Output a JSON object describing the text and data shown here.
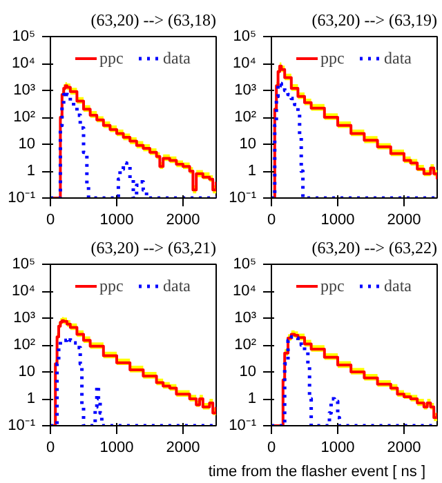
{
  "chart_data": [
    {
      "type": "step",
      "title": "(63,20) --> (63,18)",
      "log": "y",
      "xlim": [
        0,
        2500
      ],
      "ylim": [
        0.1,
        100000
      ],
      "xticks": [
        0,
        1000,
        2000
      ],
      "yticks": [
        {
          "value": 0.1,
          "label": "10⁻¹"
        },
        1,
        10,
        {
          "value": 100,
          "label": "10²"
        },
        {
          "value": 1000,
          "label": "10³"
        },
        {
          "value": 10000,
          "label": "10⁴"
        },
        {
          "value": 100000,
          "label": "10⁵"
        }
      ],
      "legend": "top",
      "series": [
        {
          "name": "ppc",
          "color": "#ff0000",
          "line_style": "solid",
          "x": [
            0,
            125,
            150,
            175,
            200,
            225,
            250,
            300,
            400,
            500,
            600,
            700,
            800,
            900,
            1000,
            1100,
            1200,
            1300,
            1400,
            1500,
            1600,
            1650,
            1700,
            1800,
            1900,
            2000,
            2100,
            2150,
            2200,
            2250,
            2300,
            2400,
            2450,
            2500
          ],
          "values": [
            0.1,
            0.1,
            100,
            700,
            1200,
            1500,
            1300,
            900,
            400,
            200,
            120,
            80,
            50,
            35,
            25,
            18,
            13,
            9,
            7,
            5,
            3.5,
            1.5,
            3,
            2.5,
            1.8,
            1.5,
            1,
            0.2,
            0.8,
            0.8,
            0.6,
            0.5,
            0.2,
            0.4
          ],
          "lower": [
            0.1,
            0.1,
            80,
            550,
            950,
            1200,
            1050,
            700,
            320,
            160,
            95,
            65,
            40,
            28,
            20,
            14,
            10,
            7,
            5.5,
            4,
            2.8,
            1.2,
            2.4,
            2,
            1.4,
            1.2,
            0.8,
            0.15,
            0.6,
            0.6,
            0.5,
            0.4,
            0.15,
            0.3
          ],
          "upper": [
            0.1,
            0.1,
            140,
            950,
            1700,
            2000,
            1800,
            1250,
            560,
            280,
            170,
            110,
            70,
            50,
            35,
            25,
            18,
            13,
            10,
            7,
            5,
            2.2,
            4.2,
            3.5,
            2.5,
            2.1,
            1.4,
            0.3,
            1.1,
            1.1,
            0.9,
            0.7,
            0.3,
            0.6
          ]
        },
        {
          "name": "data",
          "color": "#0000ff",
          "line_style": "dotted",
          "x": [
            0,
            125,
            150,
            175,
            200,
            225,
            250,
            300,
            350,
            400,
            450,
            500,
            550,
            575,
            1000,
            1025,
            1050,
            1100,
            1150,
            1200,
            1250,
            1300,
            1350,
            1400,
            1450,
            2500
          ],
          "values": [
            0.1,
            0.1,
            50,
            300,
            700,
            900,
            700,
            400,
            250,
            120,
            40,
            5,
            0.3,
            0.1,
            0.1,
            0.5,
            1.2,
            2,
            1.5,
            0.5,
            0.1,
            0.3,
            0.4,
            0.2,
            0.1,
            0.1
          ]
        }
      ]
    },
    {
      "type": "step",
      "title": "(63,20) --> (63,19)",
      "log": "y",
      "xlim": [
        0,
        2500
      ],
      "ylim": [
        0.1,
        100000
      ],
      "xticks": [
        0,
        1000,
        2000
      ],
      "yticks": [
        {
          "value": 0.1,
          "label": "10⁻¹"
        },
        1,
        10,
        {
          "value": 100,
          "label": "10²"
        },
        {
          "value": 1000,
          "label": "10³"
        },
        {
          "value": 10000,
          "label": "10⁴"
        },
        {
          "value": 100000,
          "label": "10⁵"
        }
      ],
      "legend": "top",
      "series": [
        {
          "name": "ppc",
          "color": "#ff0000",
          "line_style": "solid",
          "x": [
            0,
            25,
            50,
            75,
            100,
            125,
            150,
            200,
            300,
            400,
            500,
            600,
            800,
            1000,
            1200,
            1400,
            1600,
            1800,
            2000,
            2100,
            2200,
            2300,
            2350,
            2400,
            2450,
            2500
          ],
          "values": [
            0.1,
            0.1,
            200,
            1500,
            5000,
            8000,
            6000,
            3000,
            1200,
            600,
            350,
            220,
            100,
            50,
            25,
            14,
            8,
            4.5,
            2.5,
            2,
            1.2,
            0.8,
            0.8,
            1.3,
            0.8,
            0.5
          ],
          "lower": [
            0.1,
            0.1,
            160,
            1200,
            4000,
            6500,
            4800,
            2400,
            950,
            480,
            280,
            175,
            80,
            40,
            20,
            11,
            6.4,
            3.6,
            2,
            1.6,
            1,
            0.65,
            0.65,
            1,
            0.65,
            0.4
          ],
          "upper": [
            0.1,
            0.1,
            280,
            2100,
            7000,
            11000,
            8400,
            4200,
            1700,
            840,
            490,
            310,
            140,
            70,
            35,
            20,
            11,
            6.3,
            3.5,
            2.8,
            1.7,
            1.1,
            1.1,
            1.8,
            1.1,
            0.7
          ]
        },
        {
          "name": "data",
          "color": "#0000ff",
          "line_style": "dotted",
          "x": [
            0,
            25,
            50,
            75,
            100,
            125,
            150,
            200,
            250,
            300,
            350,
            400,
            425,
            450,
            475,
            2500
          ],
          "values": [
            0.1,
            0.1,
            50,
            600,
            1500,
            1800,
            1500,
            1000,
            700,
            500,
            300,
            150,
            20,
            1,
            0.1,
            0.1
          ]
        }
      ]
    },
    {
      "type": "step",
      "title": "(63,20) --> (63,21)",
      "log": "y",
      "xlim": [
        0,
        2500
      ],
      "ylim": [
        0.1,
        100000
      ],
      "xticks": [
        0,
        1000,
        2000
      ],
      "yticks": [
        {
          "value": 0.1,
          "label": "10⁻¹"
        },
        1,
        10,
        {
          "value": 100,
          "label": "10²"
        },
        {
          "value": 1000,
          "label": "10³"
        },
        {
          "value": 10000,
          "label": "10⁴"
        },
        {
          "value": 100000,
          "label": "10⁵"
        }
      ],
      "legend": "top",
      "series": [
        {
          "name": "ppc",
          "color": "#ff0000",
          "line_style": "solid",
          "x": [
            0,
            50,
            75,
            100,
            125,
            150,
            175,
            200,
            250,
            300,
            400,
            500,
            600,
            800,
            1000,
            1200,
            1400,
            1600,
            1700,
            1800,
            1900,
            2000,
            2100,
            2200,
            2250,
            2300,
            2400,
            2450,
            2500
          ],
          "values": [
            0.1,
            0.1,
            20,
            200,
            500,
            700,
            800,
            750,
            600,
            450,
            250,
            150,
            90,
            40,
            22,
            12,
            7,
            4,
            3,
            2.5,
            1.5,
            1.5,
            1,
            0.6,
            1,
            0.5,
            0.7,
            0.3,
            0.5
          ],
          "lower": [
            0.1,
            0.1,
            16,
            160,
            400,
            560,
            640,
            600,
            480,
            360,
            200,
            120,
            72,
            32,
            18,
            9.6,
            5.6,
            3.2,
            2.4,
            2,
            1.2,
            1.2,
            0.8,
            0.5,
            0.8,
            0.4,
            0.55,
            0.25,
            0.4
          ],
          "upper": [
            0.1,
            0.1,
            28,
            280,
            700,
            1000,
            1100,
            1050,
            840,
            630,
            350,
            210,
            125,
            56,
            31,
            17,
            10,
            5.6,
            4.2,
            3.5,
            2.1,
            2.1,
            1.4,
            0.85,
            1.4,
            0.7,
            1,
            0.45,
            0.7
          ]
        },
        {
          "name": "data",
          "color": "#0000ff",
          "line_style": "dotted",
          "x": [
            0,
            75,
            100,
            125,
            150,
            200,
            250,
            300,
            350,
            400,
            450,
            475,
            500,
            650,
            675,
            700,
            725,
            750,
            775,
            2500
          ],
          "values": [
            0.1,
            0.1,
            20,
            100,
            150,
            150,
            180,
            150,
            120,
            80,
            20,
            0.5,
            0.1,
            0.1,
            0.5,
            3,
            1,
            0.3,
            0.1,
            0.1
          ]
        }
      ]
    },
    {
      "type": "step",
      "title": "(63,20) --> (63,22)",
      "xlabel": "time from the flasher event [ ns ]",
      "log": "y",
      "xlim": [
        0,
        2500
      ],
      "ylim": [
        0.1,
        100000
      ],
      "xticks": [
        0,
        1000,
        2000
      ],
      "yticks": [
        {
          "value": 0.1,
          "label": "10⁻¹"
        },
        1,
        10,
        {
          "value": 100,
          "label": "10²"
        },
        {
          "value": 1000,
          "label": "10³"
        },
        {
          "value": 10000,
          "label": "10⁴"
        },
        {
          "value": 100000,
          "label": "10⁵"
        }
      ],
      "legend": "top",
      "series": [
        {
          "name": "ppc",
          "color": "#ff0000",
          "line_style": "solid",
          "x": [
            0,
            150,
            175,
            200,
            250,
            300,
            350,
            400,
            500,
            600,
            800,
            1000,
            1200,
            1400,
            1600,
            1800,
            1900,
            2000,
            2100,
            2200,
            2300,
            2350,
            2400,
            2450,
            2500
          ],
          "values": [
            0.1,
            0.1,
            5,
            50,
            180,
            250,
            230,
            190,
            110,
            70,
            35,
            18,
            10,
            6,
            3.5,
            2.5,
            1.5,
            1.2,
            1,
            0.7,
            0.5,
            0.7,
            0.5,
            0.2,
            0.3
          ],
          "lower": [
            0.1,
            0.1,
            4,
            40,
            145,
            200,
            185,
            150,
            88,
            56,
            28,
            14,
            8,
            4.8,
            2.8,
            2,
            1.2,
            1,
            0.8,
            0.55,
            0.4,
            0.55,
            0.4,
            0.15,
            0.25
          ],
          "upper": [
            0.1,
            0.1,
            7,
            70,
            250,
            350,
            320,
            265,
            155,
            98,
            49,
            25,
            14,
            8.4,
            4.9,
            3.5,
            2.1,
            1.7,
            1.4,
            1,
            0.7,
            1,
            0.7,
            0.3,
            0.42
          ]
        },
        {
          "name": "data",
          "color": "#0000ff",
          "line_style": "dotted",
          "x": [
            0,
            150,
            200,
            250,
            300,
            350,
            400,
            450,
            500,
            550,
            575,
            600,
            850,
            875,
            900,
            950,
            1000,
            1025,
            2500
          ],
          "values": [
            0.1,
            0.1,
            20,
            150,
            200,
            180,
            150,
            100,
            60,
            20,
            1,
            0.1,
            0.1,
            0.3,
            1,
            0.8,
            0.2,
            0.1,
            0.1
          ]
        }
      ]
    }
  ]
}
